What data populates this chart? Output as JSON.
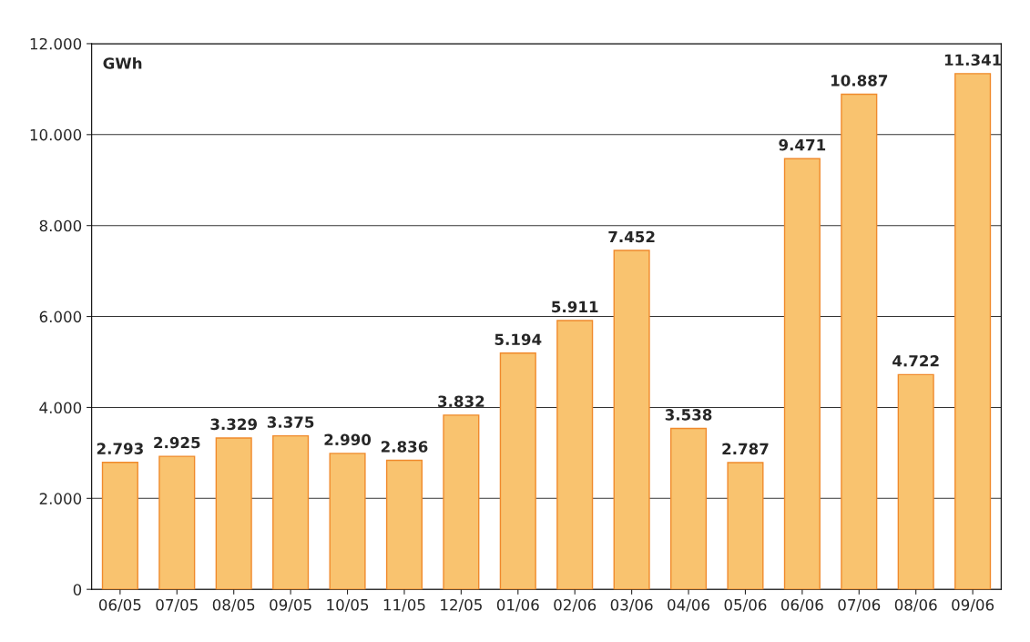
{
  "chart_data": {
    "type": "bar",
    "ylabel": "GWh",
    "categories": [
      "06/05",
      "07/05",
      "08/05",
      "09/05",
      "10/05",
      "11/05",
      "12/05",
      "01/06",
      "02/06",
      "03/06",
      "04/06",
      "05/06",
      "06/06",
      "07/06",
      "08/06",
      "09/06"
    ],
    "values": [
      2793,
      2925,
      3329,
      3375,
      2990,
      2836,
      3832,
      5194,
      5911,
      7452,
      3538,
      2787,
      9471,
      10887,
      4722,
      11341
    ],
    "value_labels": [
      "2.793",
      "2.925",
      "3.329",
      "3.375",
      "2.990",
      "2.836",
      "3.832",
      "5.194",
      "5.911",
      "7.452",
      "3.538",
      "2.787",
      "9.471",
      "10.887",
      "4.722",
      "11.341"
    ],
    "color": "#f9c36f",
    "ylim": [
      0,
      12000
    ],
    "yticks": [
      {
        "value": 0,
        "label": "0"
      },
      {
        "value": 2000,
        "label": "2.000"
      },
      {
        "value": 4000,
        "label": "4.000"
      },
      {
        "value": 6000,
        "label": "6.000"
      },
      {
        "value": 8000,
        "label": "8.000"
      },
      {
        "value": 10000,
        "label": "10.000"
      },
      {
        "value": 12000,
        "label": "12.000"
      }
    ],
    "grid": "y",
    "legend": false
  }
}
